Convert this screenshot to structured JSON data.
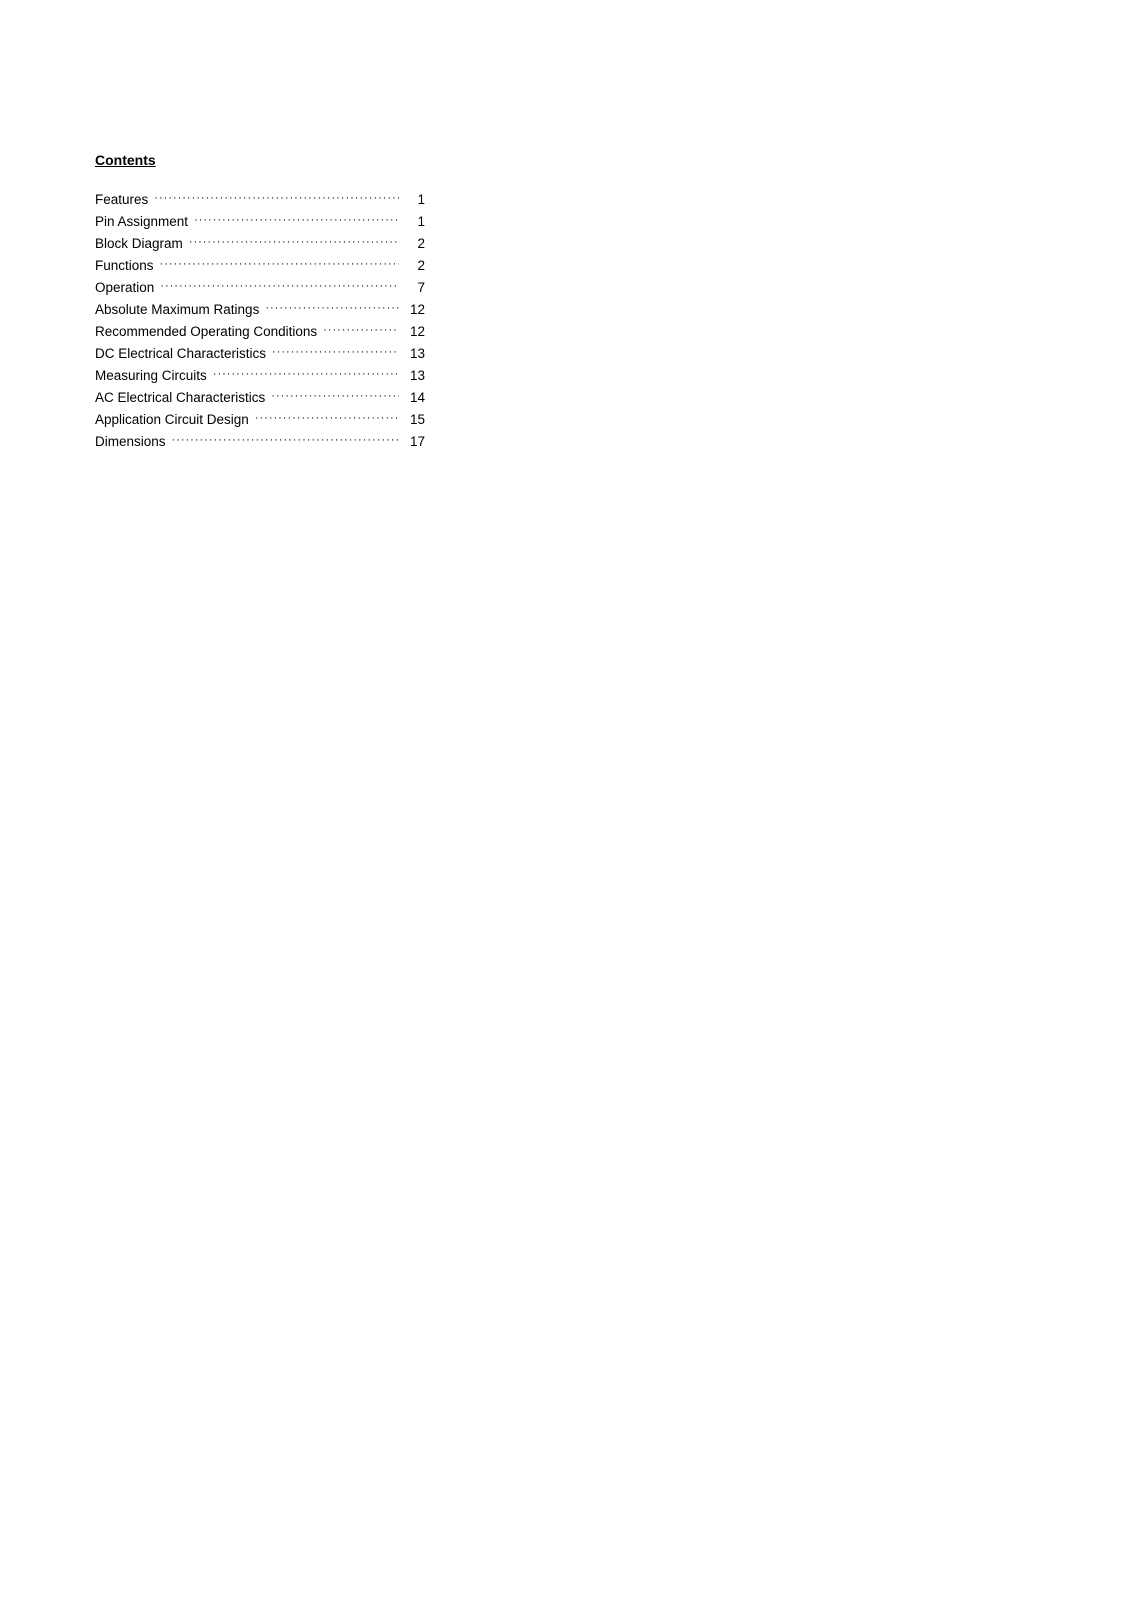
{
  "heading": "Contents",
  "toc": [
    {
      "label": "Features",
      "page": "1"
    },
    {
      "label": "Pin Assignment",
      "page": "1"
    },
    {
      "label": "Block Diagram",
      "page": "2"
    },
    {
      "label": "Functions",
      "page": "2"
    },
    {
      "label": "Operation",
      "page": "7"
    },
    {
      "label": "Absolute Maximum Ratings",
      "page": "12"
    },
    {
      "label": "Recommended Operating Conditions",
      "page": "12"
    },
    {
      "label": "DC Electrical Characteristics",
      "page": "13"
    },
    {
      "label": "Measuring Circuits",
      "page": "13"
    },
    {
      "label": "AC Electrical Characteristics",
      "page": "14"
    },
    {
      "label": "Application Circuit Design",
      "page": "15"
    },
    {
      "label": "Dimensions",
      "page": "17"
    }
  ],
  "colors": {
    "background": "#ffffff",
    "text": "#000000"
  },
  "typography": {
    "heading_fontsize": 14,
    "heading_weight": "bold",
    "body_fontsize": 13.5,
    "font_family": "Arial"
  }
}
